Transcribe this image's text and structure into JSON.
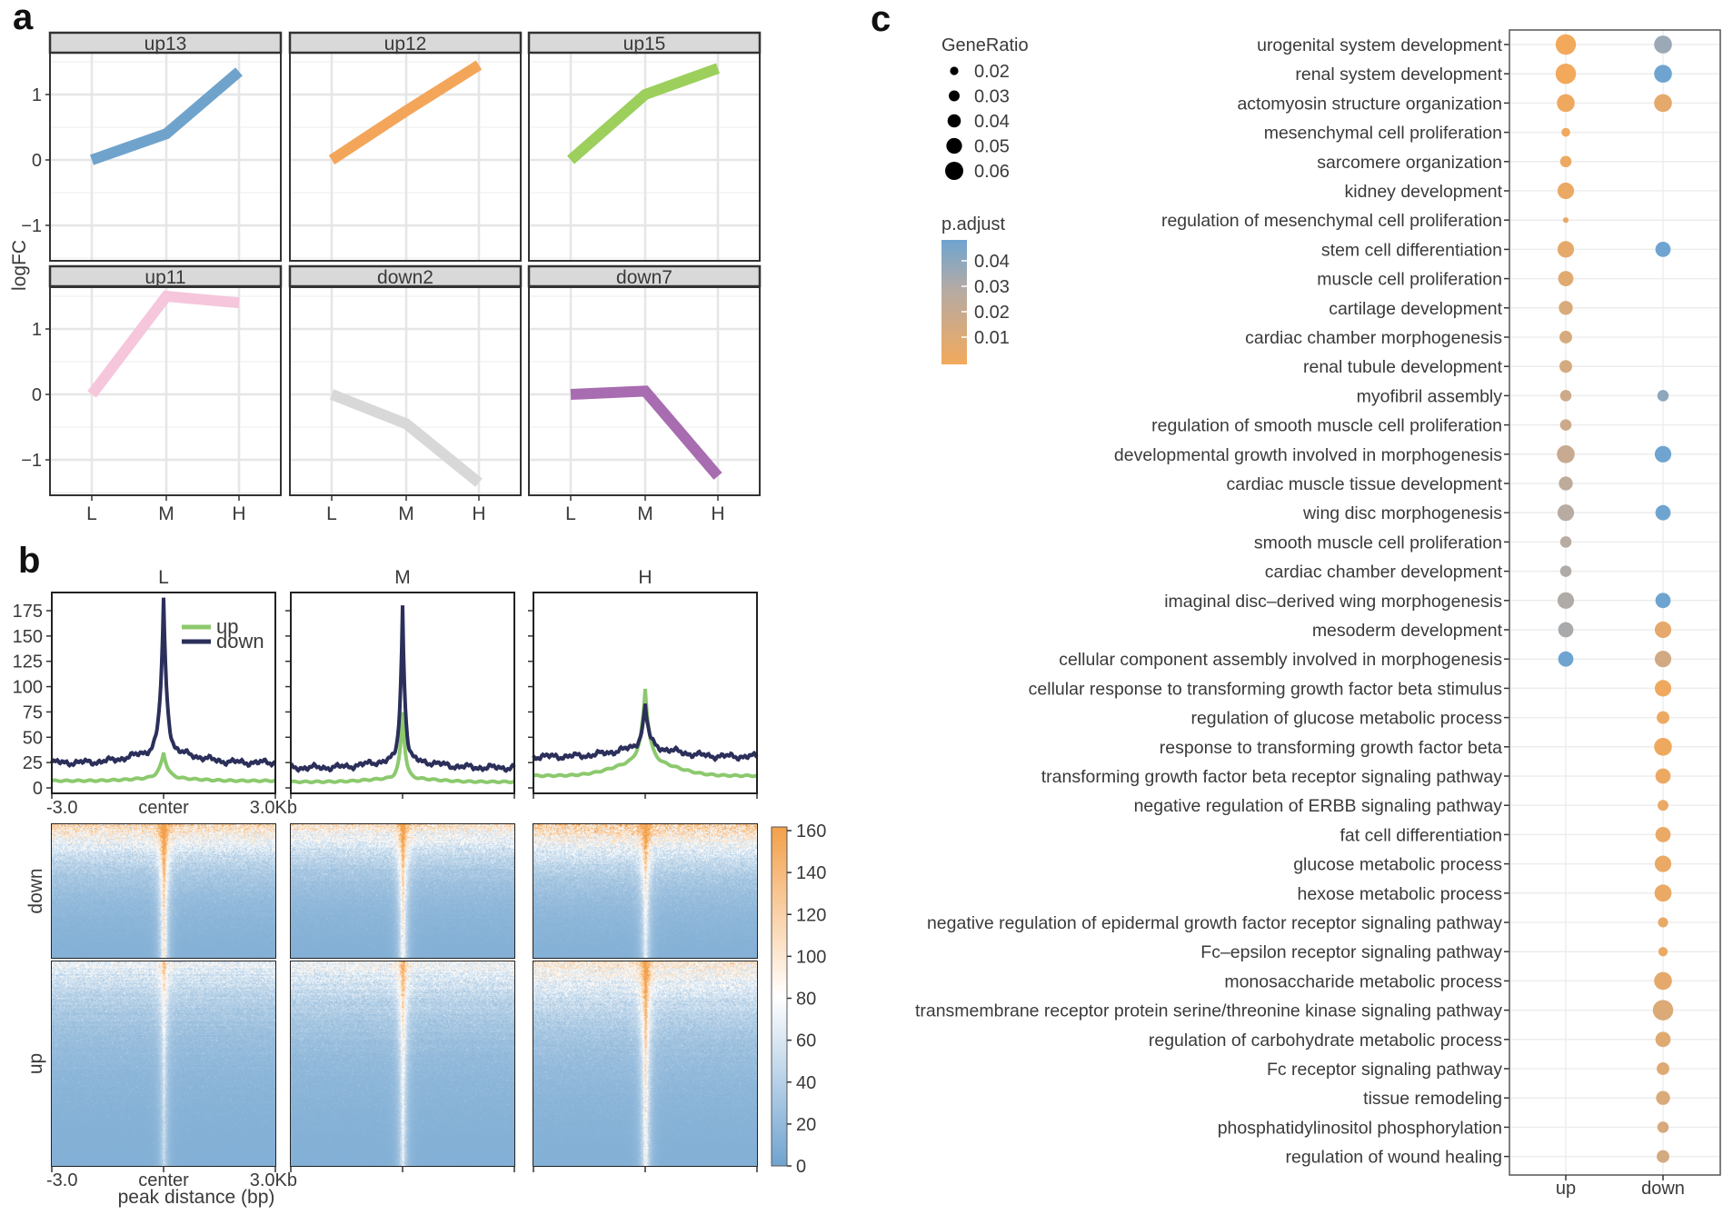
{
  "panel_labels": {
    "a": "a",
    "b": "b",
    "c": "c"
  },
  "chart_data": [
    {
      "panel": "a",
      "type": "line",
      "ylabel": "logFC",
      "xticks": [
        "L",
        "M",
        "H"
      ],
      "yticks": [
        -1,
        0,
        1
      ],
      "ytick_labels": [
        "−1",
        "0",
        "1"
      ],
      "ylim": [
        -1.55,
        1.65
      ],
      "facets": [
        {
          "name": "up13",
          "color": "#6fa3cc",
          "values": [
            0,
            0.4,
            1.35
          ]
        },
        {
          "name": "up12",
          "color": "#f3a65a",
          "values": [
            0,
            0.75,
            1.45
          ]
        },
        {
          "name": "up15",
          "color": "#9ccf5c",
          "values": [
            0,
            1.0,
            1.4
          ]
        },
        {
          "name": "up11",
          "color": "#f5c6dc",
          "values": [
            0,
            1.5,
            1.4
          ]
        },
        {
          "name": "down2",
          "color": "#d8d8d8",
          "values": [
            0,
            -0.45,
            -1.35
          ]
        },
        {
          "name": "down7",
          "color": "#a86cb0",
          "values": [
            0,
            0.05,
            -1.25
          ]
        }
      ]
    },
    {
      "panel": "b-profile",
      "type": "line",
      "columns": [
        "L",
        "M",
        "H"
      ],
      "yticks": [
        0,
        25,
        50,
        75,
        100,
        125,
        150,
        175
      ],
      "ylim": [
        -5,
        195
      ],
      "xticks": [
        "-3.0",
        "center",
        "3.0Kb"
      ],
      "legend": [
        {
          "name": "up",
          "color": "#8cc96e"
        },
        {
          "name": "down",
          "color": "#2b2f5a"
        }
      ],
      "profiles": {
        "L": {
          "up": {
            "flank": 7,
            "shoulder": 3,
            "peak": 35,
            "width": 0.12
          },
          "down": {
            "flank": 25,
            "shoulder": 12,
            "peak": 185,
            "width": 0.09
          }
        },
        "M": {
          "up": {
            "flank": 6,
            "shoulder": 4,
            "peak": 75,
            "width": 0.08
          },
          "down": {
            "flank": 20,
            "shoulder": 8,
            "peak": 180,
            "width": 0.07
          }
        },
        "H": {
          "up": {
            "flank": 12,
            "shoulder": 15,
            "peak": 98,
            "width": 0.12
          },
          "down": {
            "flank": 31,
            "shoulder": 9,
            "peak": 83,
            "width": 0.1
          }
        }
      }
    },
    {
      "panel": "b-heatmap",
      "type": "heatmap",
      "rows": [
        "down",
        "up"
      ],
      "columns": [
        "L",
        "M",
        "H"
      ],
      "xticks": [
        "-3.0",
        "center",
        "3.0Kb"
      ],
      "xlabel": "peak distance (bp)",
      "colorbar_ticks": [
        0,
        20,
        40,
        60,
        80,
        100,
        120,
        140,
        160
      ],
      "colorbar_colors": [
        "#6fa3cf",
        "#ffffff",
        "#f3a04a"
      ],
      "cells": [
        {
          "row": "down",
          "col": "L",
          "center": 165,
          "flank_top": 110
        },
        {
          "row": "down",
          "col": "M",
          "center": 150,
          "flank_top": 95
        },
        {
          "row": "down",
          "col": "H",
          "center": 120,
          "flank_top": 125
        },
        {
          "row": "up",
          "col": "L",
          "center": 75,
          "flank_top": 60
        },
        {
          "row": "up",
          "col": "M",
          "center": 110,
          "flank_top": 70
        },
        {
          "row": "up",
          "col": "H",
          "center": 150,
          "flank_top": 90
        }
      ]
    },
    {
      "panel": "c",
      "type": "scatter",
      "categories": [
        "up",
        "down"
      ],
      "size_legend_title": "GeneRatio",
      "size_legend": [
        0.02,
        0.03,
        0.04,
        0.05,
        0.06
      ],
      "size_legend_labels": [
        "0.02",
        "0.03",
        "0.04",
        "0.05",
        "0.06"
      ],
      "color_legend_title": "p.adjust",
      "color_legend_labels": [
        "0.04",
        "0.03",
        "0.02",
        "0.01"
      ],
      "color_range": [
        0.005,
        0.045
      ],
      "colors": [
        "#f2a95c",
        "#b5aba4",
        "#6fa4d0"
      ],
      "terms": [
        {
          "label": "urogenital system development",
          "up": [
            0.065,
            0.005
          ],
          "down": [
            0.055,
            0.035
          ]
        },
        {
          "label": "renal system development",
          "up": [
            0.065,
            0.005
          ],
          "down": [
            0.055,
            0.045
          ]
        },
        {
          "label": "actomyosin structure organization",
          "up": [
            0.055,
            0.006
          ],
          "down": [
            0.055,
            0.01
          ]
        },
        {
          "label": "mesenchymal cell proliferation",
          "up": [
            0.02,
            0.006
          ],
          "down": null
        },
        {
          "label": "sarcomere organization",
          "up": [
            0.03,
            0.007
          ],
          "down": null
        },
        {
          "label": "kidney development",
          "up": [
            0.05,
            0.008
          ],
          "down": null
        },
        {
          "label": "regulation of mesenchymal cell proliferation",
          "up": [
            0.008,
            0.008
          ],
          "down": null
        },
        {
          "label": "stem cell differentiation",
          "up": [
            0.05,
            0.01
          ],
          "down": [
            0.045,
            0.045
          ]
        },
        {
          "label": "muscle cell proliferation",
          "up": [
            0.045,
            0.012
          ],
          "down": null
        },
        {
          "label": "cartilage development",
          "up": [
            0.04,
            0.015
          ],
          "down": null
        },
        {
          "label": "cardiac chamber morphogenesis",
          "up": [
            0.035,
            0.016
          ],
          "down": null
        },
        {
          "label": "renal tubule development",
          "up": [
            0.035,
            0.017
          ],
          "down": null
        },
        {
          "label": "myofibril assembly",
          "up": [
            0.03,
            0.02
          ],
          "down": [
            0.03,
            0.038
          ]
        },
        {
          "label": "regulation of smooth muscle cell proliferation",
          "up": [
            0.03,
            0.02
          ],
          "down": null
        },
        {
          "label": "developmental growth involved in morphogenesis",
          "up": [
            0.055,
            0.022
          ],
          "down": [
            0.05,
            0.045
          ]
        },
        {
          "label": "cardiac muscle tissue development",
          "up": [
            0.04,
            0.026
          ],
          "down": null
        },
        {
          "label": "wing disc morphogenesis",
          "up": [
            0.05,
            0.028
          ],
          "down": [
            0.045,
            0.045
          ]
        },
        {
          "label": "smooth muscle cell proliferation",
          "up": [
            0.03,
            0.028
          ],
          "down": null
        },
        {
          "label": "cardiac chamber development",
          "up": [
            0.03,
            0.03
          ],
          "down": null
        },
        {
          "label": "imaginal disc–derived wing morphogenesis",
          "up": [
            0.05,
            0.03
          ],
          "down": [
            0.045,
            0.045
          ]
        },
        {
          "label": "mesoderm development",
          "up": [
            0.045,
            0.032
          ],
          "down": [
            0.05,
            0.01
          ]
        },
        {
          "label": "cellular component assembly involved in morphogenesis",
          "up": [
            0.045,
            0.048
          ],
          "down": [
            0.05,
            0.018
          ]
        },
        {
          "label": "cellular response to transforming growth factor beta stimulus",
          "up": null,
          "down": [
            0.05,
            0.006
          ]
        },
        {
          "label": "regulation of glucose metabolic process",
          "up": null,
          "down": [
            0.035,
            0.007
          ]
        },
        {
          "label": "response to transforming growth factor beta",
          "up": null,
          "down": [
            0.055,
            0.006
          ]
        },
        {
          "label": "transforming growth factor beta receptor signaling pathway",
          "up": null,
          "down": [
            0.045,
            0.007
          ]
        },
        {
          "label": "negative regulation of ERBB signaling pathway",
          "up": null,
          "down": [
            0.028,
            0.008
          ]
        },
        {
          "label": "fat cell differentiation",
          "up": null,
          "down": [
            0.045,
            0.008
          ]
        },
        {
          "label": "glucose metabolic process",
          "up": null,
          "down": [
            0.05,
            0.008
          ]
        },
        {
          "label": "hexose metabolic process",
          "up": null,
          "down": [
            0.052,
            0.008
          ]
        },
        {
          "label": "negative regulation of epidermal growth factor receptor signaling pathway",
          "up": null,
          "down": [
            0.025,
            0.008
          ]
        },
        {
          "label": "Fc–epsilon receptor signaling pathway",
          "up": null,
          "down": [
            0.022,
            0.008
          ]
        },
        {
          "label": "monosaccharide metabolic process",
          "up": null,
          "down": [
            0.055,
            0.01
          ]
        },
        {
          "label": "transmembrane receptor protein serine/threonine kinase signaling pathway",
          "up": null,
          "down": [
            0.065,
            0.014
          ]
        },
        {
          "label": "regulation of carbohydrate metabolic process",
          "up": null,
          "down": [
            0.045,
            0.012
          ]
        },
        {
          "label": "Fc receptor signaling pathway",
          "up": null,
          "down": [
            0.035,
            0.013
          ]
        },
        {
          "label": "tissue remodeling",
          "up": null,
          "down": [
            0.04,
            0.015
          ]
        },
        {
          "label": "phosphatidylinositol phosphorylation",
          "up": null,
          "down": [
            0.03,
            0.016
          ]
        },
        {
          "label": "regulation of wound healing",
          "up": null,
          "down": [
            0.035,
            0.017
          ]
        }
      ]
    }
  ]
}
